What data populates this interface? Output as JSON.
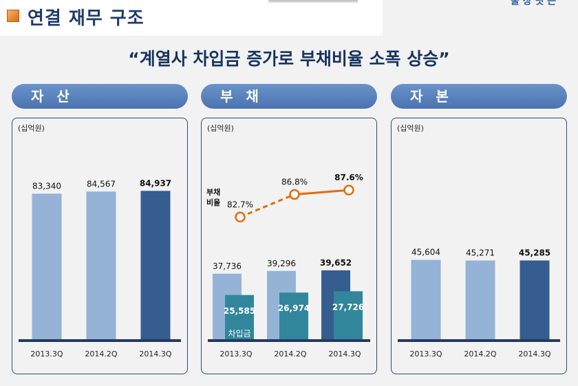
{
  "page": {
    "title": "연결 재무 구조",
    "corner_text": "물 상 닛 는",
    "headline": "“계열사 차입금 증가로 부채비율 소폭 상승”"
  },
  "colors": {
    "bar_light": "#95b3d7",
    "bar_dark": "#355d8f",
    "bar_teal": "#31869b",
    "baseline": "#233a5e",
    "ratio_line": "#e46c0a"
  },
  "chart_data": [
    {
      "type": "bar",
      "title": "자 산",
      "unit": "(십억원)",
      "categories": [
        "2013.3Q",
        "2014.2Q",
        "2014.3Q"
      ],
      "values": [
        83340,
        84567,
        84937
      ],
      "value_labels": [
        "83,340",
        "84,567",
        "84,937"
      ],
      "highlight_index": 2,
      "ylim": [
        0,
        100000
      ]
    },
    {
      "type": "bar",
      "title": "부 채",
      "unit": "(십억원)",
      "categories": [
        "2013.3Q",
        "2014.2Q",
        "2014.3Q"
      ],
      "series": [
        {
          "name": "",
          "values": [
            37736,
            39296,
            39652
          ],
          "value_labels": [
            "37,736",
            "39,296",
            "39,652"
          ]
        },
        {
          "name": "차입금",
          "values": [
            25585,
            26974,
            27726
          ],
          "value_labels": [
            "25,585",
            "26,974",
            "27,726"
          ]
        }
      ],
      "highlight_index": 2,
      "ylim": [
        0,
        100000
      ],
      "ratio": {
        "name": "부채\n비율",
        "values": [
          82.7,
          86.8,
          87.6
        ],
        "value_labels": [
          "82.7%",
          "86.8%",
          "87.6%"
        ],
        "range": [
          80,
          90
        ]
      }
    },
    {
      "type": "bar",
      "title": "자 본",
      "unit": "(십억원)",
      "categories": [
        "2013.3Q",
        "2014.2Q",
        "2014.3Q"
      ],
      "values": [
        45604,
        45271,
        45285
      ],
      "value_labels": [
        "45,604",
        "45,271",
        "45,285"
      ],
      "highlight_index": 2,
      "ylim": [
        0,
        100000
      ]
    }
  ]
}
